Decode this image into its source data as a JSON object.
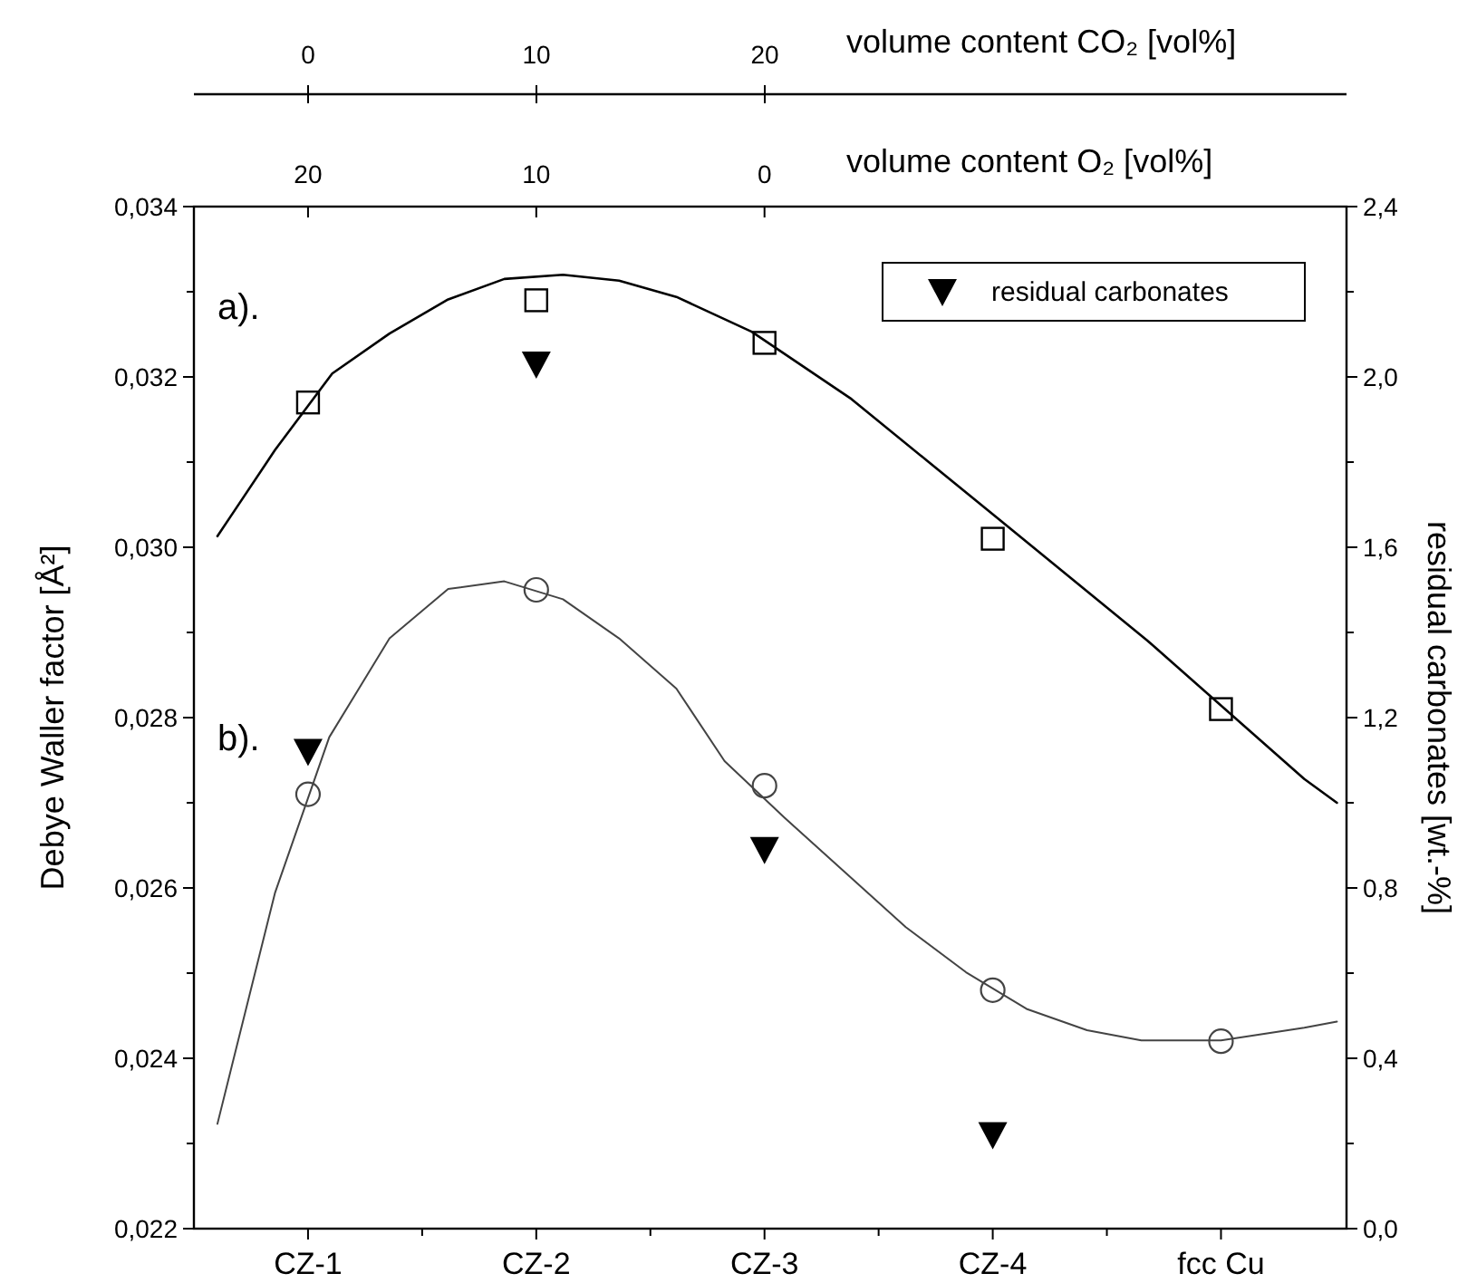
{
  "chart_data": {
    "type": "scatter",
    "x2label": "volume content O₂ [vol%]",
    "x2lim": [
      25,
      -25.5
    ],
    "x2ticks": [
      20,
      10,
      0
    ],
    "ylabel": "Debye Waller factor [Å²]",
    "y2label": "residual carbonates [wt.-%]",
    "categories": [
      "CZ-1",
      "CZ-2",
      "CZ-3",
      "CZ-4",
      "fcc Cu"
    ],
    "ylim": [
      0.022,
      0.034
    ],
    "yticks": [
      {
        "value": 0.022,
        "label": "0,022"
      },
      {
        "value": 0.023,
        "label": null
      },
      {
        "value": 0.024,
        "label": "0,024"
      },
      {
        "value": 0.025,
        "label": null
      },
      {
        "value": 0.026,
        "label": "0,026"
      },
      {
        "value": 0.027,
        "label": null
      },
      {
        "value": 0.028,
        "label": "0,028"
      },
      {
        "value": 0.029,
        "label": null
      },
      {
        "value": 0.03,
        "label": "0,030"
      },
      {
        "value": 0.031,
        "label": null
      },
      {
        "value": 0.032,
        "label": "0,032"
      },
      {
        "value": 0.033,
        "label": null
      },
      {
        "value": 0.034,
        "label": "0,034"
      }
    ],
    "y2lim": [
      0,
      2.4
    ],
    "y2ticks": [
      {
        "value": 0,
        "label": "0,0"
      },
      {
        "value": 0.2,
        "label": null
      },
      {
        "value": 0.4,
        "label": "0,4"
      },
      {
        "value": 0.6,
        "label": null
      },
      {
        "value": 0.8,
        "label": "0,8"
      },
      {
        "value": 1,
        "label": null
      },
      {
        "value": 1.2,
        "label": "1,2"
      },
      {
        "value": 1.4,
        "label": null
      },
      {
        "value": 1.6,
        "label": "1,6"
      },
      {
        "value": 1.8,
        "label": null
      },
      {
        "value": 2,
        "label": "2,0"
      },
      {
        "value": 2.2,
        "label": null
      },
      {
        "value": 2.4,
        "label": "2,4"
      }
    ],
    "legend": "top right",
    "annotations": [
      "a).",
      "b).",
      "0",
      "10",
      "20",
      "volume content CO₂ [vol%]"
    ],
    "series": [
      {
        "type": "line",
        "axis": "x2",
        "color": "#000000",
        "x": [
          23.97,
          21.45,
          18.94,
          16.43,
          13.86,
          11.4,
          8.83,
          6.37,
          3.86,
          0.56,
          -3.81,
          -10.4,
          -16.75,
          -23.65,
          -25.08
        ],
        "values": [
          0.03013,
          0.03114,
          0.03204,
          0.03251,
          0.03291,
          0.03315,
          0.0332,
          0.03313,
          0.03294,
          0.03253,
          0.03174,
          0.0303,
          0.02891,
          0.02728,
          0.027
        ]
      },
      {
        "type": "line",
        "axis": "x2",
        "color": "#444444",
        "x": [
          23.97,
          21.45,
          19.07,
          16.43,
          13.86,
          11.4,
          8.83,
          6.37,
          3.86,
          1.75,
          -0.9,
          -3.54,
          -6.19,
          -8.83,
          -11.48,
          -14.13,
          -16.51,
          -20,
          -23.65,
          -25.08
        ],
        "values": [
          0.02323,
          0.02594,
          0.02777,
          0.02893,
          0.02951,
          0.0296,
          0.02939,
          0.02893,
          0.02834,
          0.02749,
          0.02682,
          0.02618,
          0.02554,
          0.02501,
          0.02458,
          0.02433,
          0.02421,
          0.02421,
          0.02436,
          0.02443
        ]
      },
      {
        "color": "#000000",
        "marker": "square",
        "values": [
          0.0317,
          0.0329,
          0.0324,
          0.0301,
          0.0281
        ]
      },
      {
        "color": "#444444",
        "marker": "circle",
        "values": [
          0.0271,
          0.0295,
          0.0272,
          0.0248,
          0.0242
        ]
      },
      {
        "name": "residual carbonates",
        "axis": "y2",
        "color": "#000000",
        "marker": "triangle",
        "values": [
          1.12,
          2.03,
          0.89,
          0.22,
          null
        ]
      }
    ]
  }
}
